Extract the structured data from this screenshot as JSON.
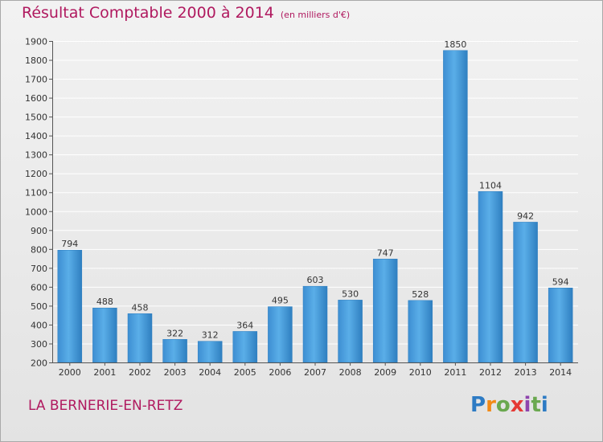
{
  "title": "Résultat Comptable 2000 à 2014",
  "subtitle": "(en milliers d'€)",
  "place": "LA BERNERIE-EN-RETZ",
  "brand": {
    "letters": [
      "P",
      "r",
      "o",
      "x",
      "i",
      "t",
      "i"
    ],
    "colors": [
      "#2d7bc4",
      "#f28a16",
      "#6aa84f",
      "#e53935",
      "#8e44ad",
      "#6aa84f",
      "#2d7bc4"
    ]
  },
  "colors": {
    "bar": "#4a9fe0",
    "bar_dark": "#2f83c6",
    "axis": "#555555",
    "grid": "#ffffff",
    "text": "#333333"
  },
  "chart_data": {
    "type": "bar",
    "categories": [
      "2000",
      "2001",
      "2002",
      "2003",
      "2004",
      "2005",
      "2006",
      "2007",
      "2008",
      "2009",
      "2010",
      "2011",
      "2012",
      "2013",
      "2014"
    ],
    "values": [
      794,
      488,
      458,
      322,
      312,
      364,
      495,
      603,
      530,
      747,
      528,
      1850,
      1104,
      942,
      594
    ],
    "ylim": [
      200,
      1900
    ],
    "yticks": [
      200,
      300,
      400,
      500,
      600,
      700,
      800,
      900,
      1000,
      1100,
      1200,
      1300,
      1400,
      1500,
      1600,
      1700,
      1800,
      1900
    ],
    "grid": true,
    "data_labels": true,
    "title": "Résultat Comptable 2000 à 2014",
    "xlabel": "",
    "ylabel": ""
  }
}
